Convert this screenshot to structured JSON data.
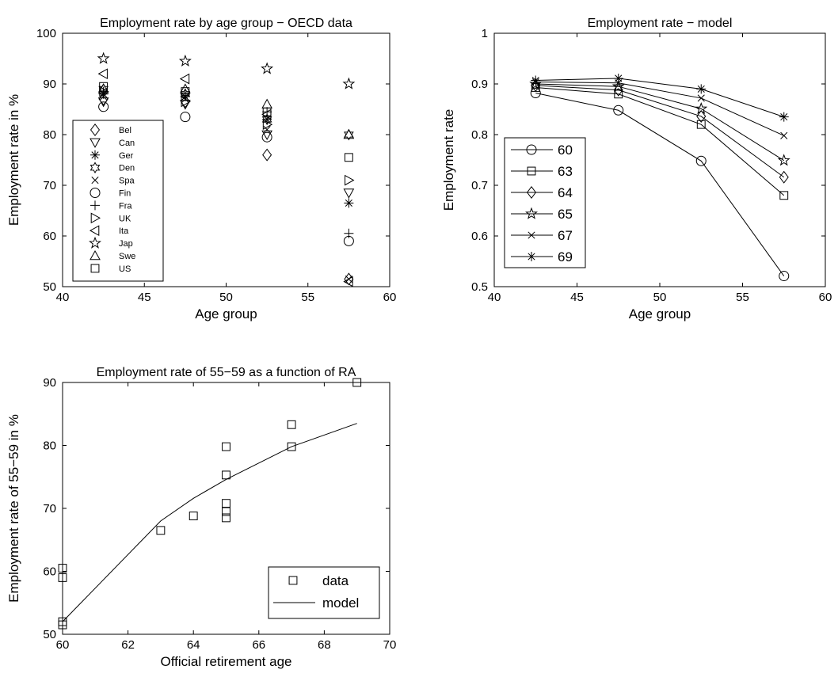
{
  "chart_data": [
    {
      "type": "scatter",
      "title": "Employment rate by age group − OECD data",
      "xlabel": "Age group",
      "ylabel": "Employment rate in %",
      "xlim": [
        40,
        60
      ],
      "ylim": [
        50,
        100
      ],
      "xticks": [
        40,
        45,
        50,
        55,
        60
      ],
      "yticks": [
        50,
        60,
        70,
        80,
        90,
        100
      ],
      "legend_position": "left",
      "x": [
        42.5,
        47.5,
        52.5,
        57.5
      ],
      "series": [
        {
          "name": "Bel",
          "marker": "diamond",
          "values": [
            87,
            86.5,
            76,
            51.5
          ]
        },
        {
          "name": "Can",
          "marker": "triangle-down",
          "values": [
            86.5,
            86,
            80,
            68.5
          ]
        },
        {
          "name": "Ger",
          "marker": "asterisk",
          "values": [
            88,
            87.5,
            83,
            66.5
          ]
        },
        {
          "name": "Den",
          "marker": "hexagram",
          "values": [
            89,
            88,
            83,
            80
          ]
        },
        {
          "name": "Spa",
          "marker": "x",
          "values": [
            87.5,
            87,
            81,
            51.5
          ]
        },
        {
          "name": "Fin",
          "marker": "circle",
          "values": [
            85.5,
            83.5,
            79.5,
            59
          ]
        },
        {
          "name": "Fra",
          "marker": "plus",
          "values": [
            88.5,
            88,
            84.5,
            60.5
          ]
        },
        {
          "name": "UK",
          "marker": "triangle-right",
          "values": [
            88.5,
            86.5,
            82,
            71
          ]
        },
        {
          "name": "Ita",
          "marker": "triangle-left",
          "values": [
            92,
            91,
            84,
            51
          ]
        },
        {
          "name": "Jap",
          "marker": "pentagram",
          "values": [
            95,
            94.5,
            93,
            90
          ]
        },
        {
          "name": "Swe",
          "marker": "triangle-up",
          "values": [
            89,
            89,
            86,
            80
          ]
        },
        {
          "name": "US",
          "marker": "square",
          "values": [
            89.5,
            88.5,
            84.5,
            75.5
          ]
        }
      ]
    },
    {
      "type": "line",
      "title": "Employment rate − model",
      "xlabel": "Age group",
      "ylabel": "Employment rate",
      "xlim": [
        40,
        60
      ],
      "ylim": [
        0.5,
        1
      ],
      "xticks": [
        40,
        45,
        50,
        55,
        60
      ],
      "yticks": [
        0.5,
        0.6,
        0.7,
        0.8,
        0.9,
        1
      ],
      "legend_position": "left",
      "x": [
        42.5,
        47.5,
        52.5,
        57.5
      ],
      "series": [
        {
          "name": "60",
          "marker": "circle",
          "values": [
            0.882,
            0.848,
            0.748,
            0.521
          ]
        },
        {
          "name": "63",
          "marker": "square",
          "values": [
            0.893,
            0.88,
            0.82,
            0.68
          ]
        },
        {
          "name": "64",
          "marker": "diamond",
          "values": [
            0.897,
            0.888,
            0.836,
            0.716
          ]
        },
        {
          "name": "65",
          "marker": "pentagram",
          "values": [
            0.9,
            0.895,
            0.851,
            0.749
          ]
        },
        {
          "name": "67",
          "marker": "x",
          "values": [
            0.904,
            0.902,
            0.872,
            0.798
          ]
        },
        {
          "name": "69",
          "marker": "asterisk",
          "values": [
            0.907,
            0.911,
            0.89,
            0.835
          ]
        }
      ]
    },
    {
      "type": "scatter",
      "title": "Employment rate of 55−59 as a function of RA",
      "xlabel": "Official retirement age",
      "ylabel": "Employment rate of 55−59 in %",
      "xlim": [
        60,
        70
      ],
      "ylim": [
        50,
        90
      ],
      "xticks": [
        60,
        62,
        64,
        66,
        68,
        70
      ],
      "yticks": [
        50,
        60,
        70,
        80,
        90
      ],
      "legend_position": "bottom-right",
      "series": [
        {
          "name": "data",
          "marker": "square",
          "points": [
            [
              60,
              51.5
            ],
            [
              60,
              52
            ],
            [
              60,
              59
            ],
            [
              60,
              60.5
            ],
            [
              63,
              66.5
            ],
            [
              64,
              68.8
            ],
            [
              65,
              68.5
            ],
            [
              65,
              69.5
            ],
            [
              65,
              70.8
            ],
            [
              65,
              75.3
            ],
            [
              65,
              79.8
            ],
            [
              67,
              79.8
            ],
            [
              67,
              83.3
            ],
            [
              69,
              90
            ]
          ]
        },
        {
          "name": "model",
          "marker": "none",
          "points": [
            [
              60,
              52
            ],
            [
              63,
              68
            ],
            [
              64,
              71.6
            ],
            [
              65,
              74.6
            ],
            [
              67,
              79.8
            ],
            [
              69,
              83.5
            ]
          ]
        }
      ]
    }
  ]
}
